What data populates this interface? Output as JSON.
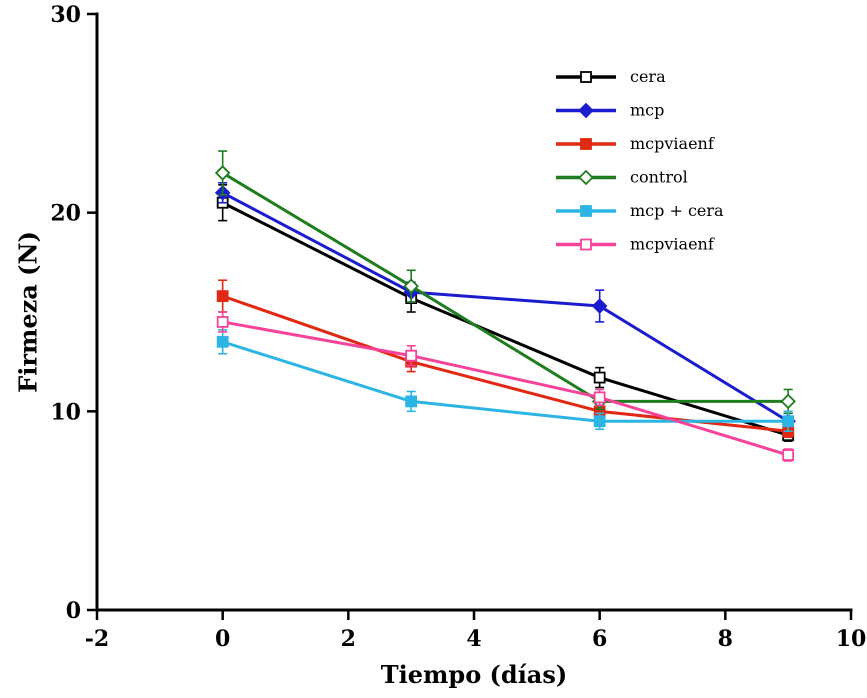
{
  "chart_data": {
    "type": "line",
    "title": "",
    "xlabel": "Tiempo (días)",
    "ylabel": "Firmeza (N)",
    "xlim": [
      -2,
      10
    ],
    "ylim": [
      0,
      30
    ],
    "xticks": [
      -2,
      0,
      2,
      4,
      6,
      8,
      10
    ],
    "yticks": [
      0,
      10,
      20,
      30
    ],
    "x": [
      0,
      3,
      6,
      9
    ],
    "grid": false,
    "legend_position": "top-right",
    "series": [
      {
        "name": "cera",
        "color": "#000000",
        "marker": "square-open",
        "values": [
          20.5,
          15.7,
          11.7,
          8.8
        ],
        "errors": [
          0.9,
          0.7,
          0.5,
          0.3
        ]
      },
      {
        "name": "mcp",
        "color": "#1c1ccf",
        "marker": "diamond-filled",
        "values": [
          21.0,
          16.0,
          15.3,
          9.5
        ],
        "errors": [
          0.5,
          0.5,
          0.8,
          0.4
        ]
      },
      {
        "name": "mcpviaenf",
        "color": "#e02812",
        "marker": "square-filled",
        "values": [
          15.8,
          12.5,
          10.0,
          9.0
        ],
        "errors": [
          0.8,
          0.5,
          0.4,
          0.3
        ]
      },
      {
        "name": "control",
        "color": "#1e7d1e",
        "marker": "diamond-open",
        "values": [
          22.0,
          16.3,
          10.5,
          10.5
        ],
        "errors": [
          1.1,
          0.8,
          0.4,
          0.6
        ]
      },
      {
        "name": "mcp + cera",
        "color": "#2cb5e2",
        "marker": "square-filled",
        "values": [
          13.5,
          10.5,
          9.5,
          9.5
        ],
        "errors": [
          0.6,
          0.5,
          0.4,
          0.5
        ]
      },
      {
        "name": "mcpviaenf",
        "color": "#f6439a",
        "marker": "square-open",
        "values": [
          14.5,
          12.8,
          10.7,
          7.8
        ],
        "errors": [
          0.5,
          0.5,
          0.4,
          0.3
        ]
      }
    ]
  }
}
